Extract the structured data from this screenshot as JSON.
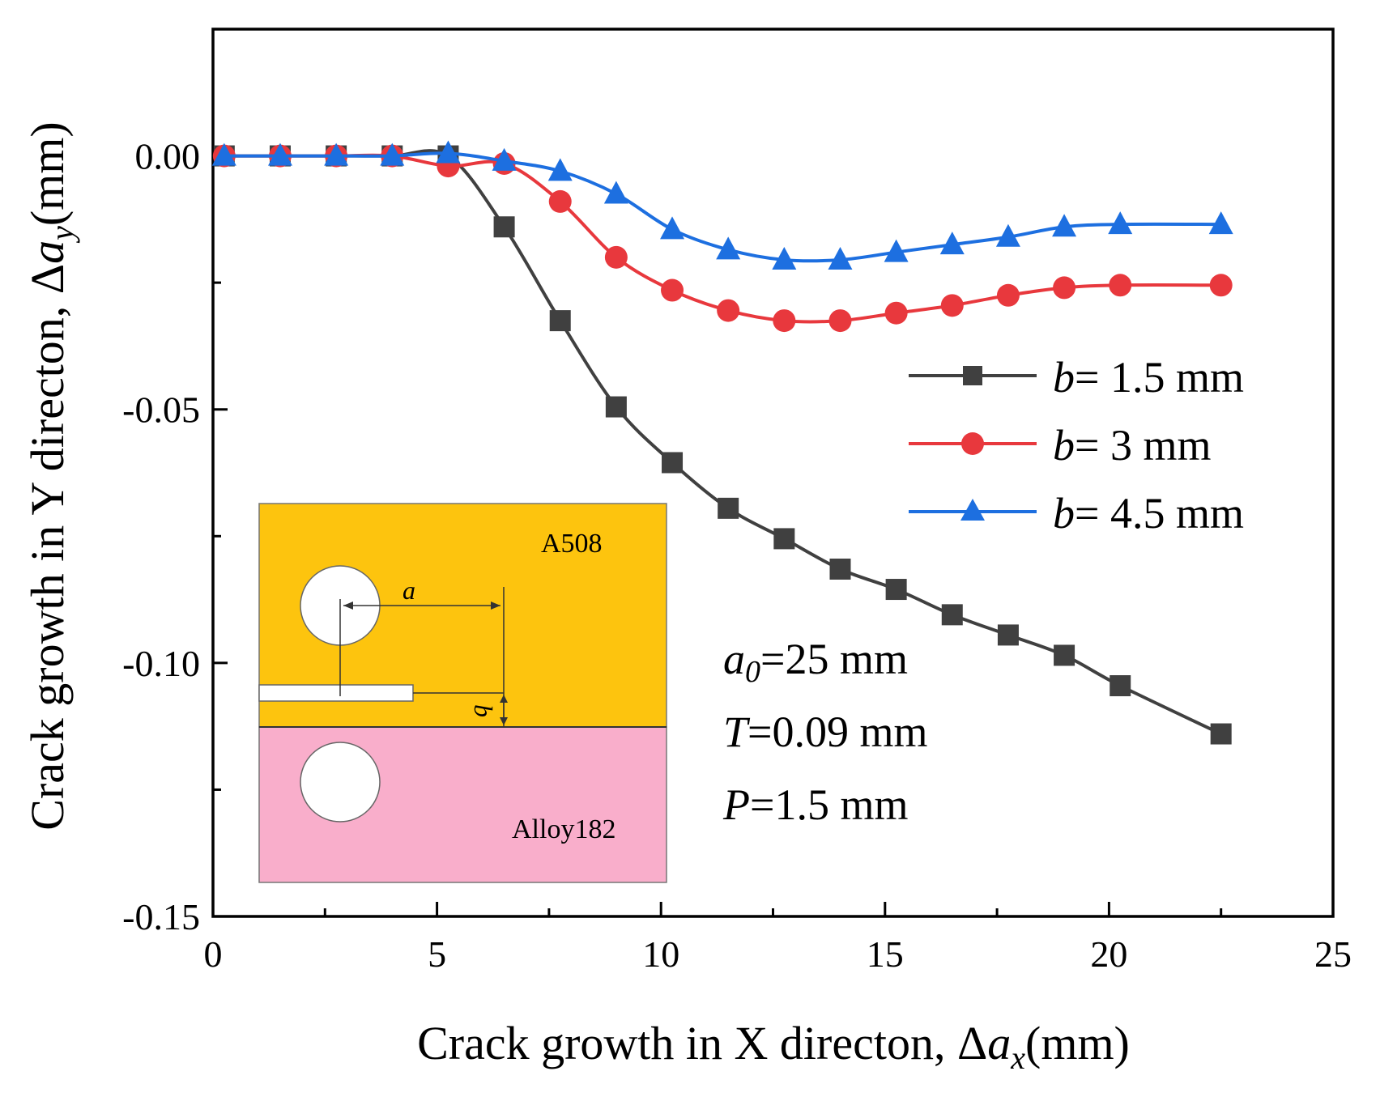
{
  "chart_data": {
    "type": "line",
    "xlabel_main": "Crack growth in X directon, Δ",
    "xlabel_var": "a",
    "xlabel_sub": "x",
    "xlabel_unit": "(mm)",
    "ylabel_main": "Crack growth in Y directon, Δ",
    "ylabel_var": "a",
    "ylabel_sub": "y",
    "ylabel_unit": "(mm)",
    "xlim": [
      0,
      25
    ],
    "ylim": [
      -0.15,
      0.025
    ],
    "x_ticks": [
      0,
      5,
      10,
      15,
      20,
      25
    ],
    "x_tick_labels": [
      "0",
      "5",
      "10",
      "15",
      "20",
      "25"
    ],
    "y_ticks": [
      0.0,
      -0.05,
      -0.1,
      -0.15
    ],
    "y_tick_labels": [
      "0.00",
      "-0.05",
      "-0.10",
      "-0.15"
    ],
    "series": [
      {
        "name": "b= 1.5 mm",
        "legend_var": "b",
        "legend_rest": "= 1.5 mm",
        "color": "#404040",
        "marker": "square",
        "x": [
          0.25,
          1.5,
          2.75,
          4.0,
          5.25,
          6.5,
          7.75,
          9.0,
          10.25,
          11.5,
          12.75,
          14.0,
          15.25,
          16.5,
          17.75,
          19.0,
          20.25,
          22.5
        ],
        "y": [
          0.0,
          0.0,
          0.0,
          0.0,
          0.0,
          -0.014,
          -0.0325,
          -0.0495,
          -0.0605,
          -0.0695,
          -0.0755,
          -0.0815,
          -0.0855,
          -0.0905,
          -0.0945,
          -0.0985,
          -0.1045,
          -0.114
        ]
      },
      {
        "name": "b= 3  mm",
        "legend_var": "b",
        "legend_rest": "= 3  mm",
        "color": "#e8383d",
        "marker": "circle",
        "x": [
          0.25,
          1.5,
          2.75,
          4.0,
          5.25,
          6.5,
          7.75,
          9.0,
          10.25,
          11.5,
          12.75,
          14.0,
          15.25,
          16.5,
          17.75,
          19.0,
          20.25,
          22.5
        ],
        "y": [
          0.0,
          0.0,
          0.0,
          0.0,
          -0.002,
          -0.0015,
          -0.009,
          -0.02,
          -0.0265,
          -0.0305,
          -0.0325,
          -0.0325,
          -0.031,
          -0.0295,
          -0.0275,
          -0.026,
          -0.0255,
          -0.0255
        ]
      },
      {
        "name": "b= 4.5 mm",
        "legend_var": "b",
        "legend_rest": "= 4.5 mm",
        "color": "#1d6fe0",
        "marker": "triangle",
        "x": [
          0.25,
          1.5,
          2.75,
          4.0,
          5.25,
          6.5,
          7.75,
          9.0,
          10.25,
          11.5,
          12.75,
          14.0,
          15.25,
          16.5,
          17.75,
          19.0,
          20.25,
          22.5
        ],
        "y": [
          0.0,
          0.0,
          0.0,
          0.0,
          0.0005,
          -0.001,
          -0.003,
          -0.0075,
          -0.0145,
          -0.0185,
          -0.0205,
          -0.0205,
          -0.019,
          -0.0175,
          -0.016,
          -0.014,
          -0.0135,
          -0.0135
        ]
      }
    ],
    "legend_position": "right"
  },
  "annotation": {
    "a0_var": "a",
    "a0_sub": "0",
    "a0_rest": "=25 mm",
    "T_var": "T",
    "T_rest": "=0.09 mm",
    "P_var": "P",
    "P_rest": "=1.5 mm"
  },
  "inset": {
    "top_material": "A508",
    "bottom_material": "Alloy182",
    "dim_a": "a",
    "dim_b": "b",
    "top_color": "#fdc40e",
    "bottom_color": "#f9aecb"
  }
}
